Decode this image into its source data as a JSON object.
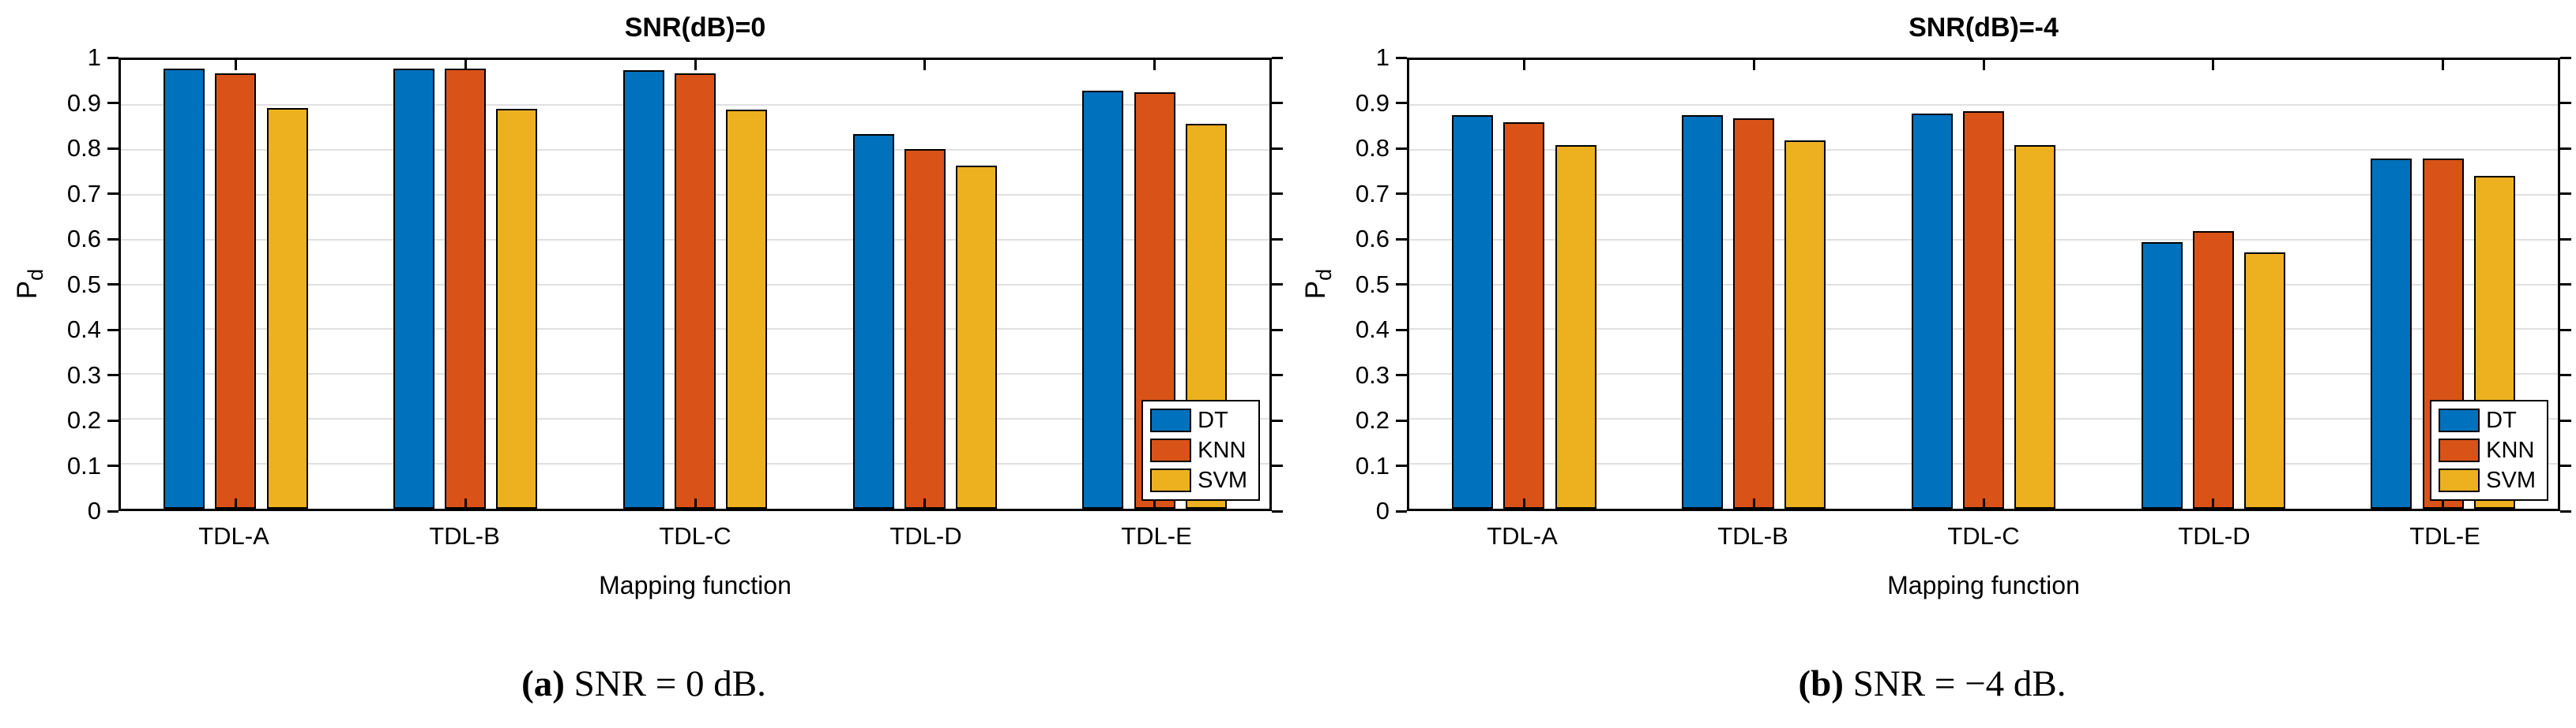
{
  "palette": {
    "dt": "#0072BD",
    "knn": "#D95319",
    "svm": "#EDB120",
    "axis": "#000000",
    "grid": "#E0E0E0",
    "background": "#FFFFFF"
  },
  "axes": {
    "ylabel": "P_d",
    "ylabel_main": "P",
    "ylabel_sub": "d",
    "xlabel": "Mapping function"
  },
  "chart_data": [
    {
      "type": "bar",
      "title": "SNR(dB)=0",
      "xlabel": "Mapping function",
      "ylabel": "P_d",
      "ylim": [
        0,
        1
      ],
      "grid": true,
      "legend_position": "bottom-right",
      "yticks": [
        {
          "value": 0,
          "label": "0"
        },
        {
          "value": 0.1,
          "label": "0.1"
        },
        {
          "value": 0.2,
          "label": "0.2"
        },
        {
          "value": 0.3,
          "label": "0.3"
        },
        {
          "value": 0.4,
          "label": "0.4"
        },
        {
          "value": 0.5,
          "label": "0.5"
        },
        {
          "value": 0.6,
          "label": "0.6"
        },
        {
          "value": 0.7,
          "label": "0.7"
        },
        {
          "value": 0.8,
          "label": "0.8"
        },
        {
          "value": 0.9,
          "label": "0.9"
        },
        {
          "value": 1,
          "label": "1"
        }
      ],
      "categories": [
        "TDL-A",
        "TDL-B",
        "TDL-C",
        "TDL-D",
        "TDL-E"
      ],
      "series": [
        {
          "name": "DT",
          "color": "#0072BD",
          "values": [
            0.98,
            0.98,
            0.978,
            0.835,
            0.932
          ]
        },
        {
          "name": "KNN",
          "color": "#D95319",
          "values": [
            0.971,
            0.981,
            0.971,
            0.802,
            0.928
          ]
        },
        {
          "name": "SVM",
          "color": "#EDB120",
          "values": [
            0.893,
            0.891,
            0.889,
            0.764,
            0.858
          ]
        }
      ]
    },
    {
      "type": "bar",
      "title": "SNR(dB)=-4",
      "xlabel": "Mapping function",
      "ylabel": "P_d",
      "ylim": [
        0,
        1
      ],
      "grid": true,
      "legend_position": "bottom-right",
      "yticks": [
        {
          "value": 0,
          "label": "0"
        },
        {
          "value": 0.1,
          "label": "0.1"
        },
        {
          "value": 0.2,
          "label": "0.2"
        },
        {
          "value": 0.3,
          "label": "0.3"
        },
        {
          "value": 0.4,
          "label": "0.4"
        },
        {
          "value": 0.5,
          "label": "0.5"
        },
        {
          "value": 0.6,
          "label": "0.6"
        },
        {
          "value": 0.7,
          "label": "0.7"
        },
        {
          "value": 0.8,
          "label": "0.8"
        },
        {
          "value": 0.9,
          "label": "0.9"
        },
        {
          "value": 1,
          "label": "1"
        }
      ],
      "categories": [
        "TDL-A",
        "TDL-B",
        "TDL-C",
        "TDL-D",
        "TDL-E"
      ],
      "series": [
        {
          "name": "DT",
          "color": "#0072BD",
          "values": [
            0.877,
            0.877,
            0.881,
            0.594,
            0.781
          ]
        },
        {
          "name": "KNN",
          "color": "#D95319",
          "values": [
            0.861,
            0.87,
            0.885,
            0.618,
            0.781
          ]
        },
        {
          "name": "SVM",
          "color": "#EDB120",
          "values": [
            0.811,
            0.82,
            0.81,
            0.571,
            0.742
          ]
        }
      ]
    }
  ],
  "captions": [
    {
      "prefix": "(a)",
      "text": "SNR = 0 dB."
    },
    {
      "prefix": "(b)",
      "text": "SNR = −4 dB."
    }
  ]
}
